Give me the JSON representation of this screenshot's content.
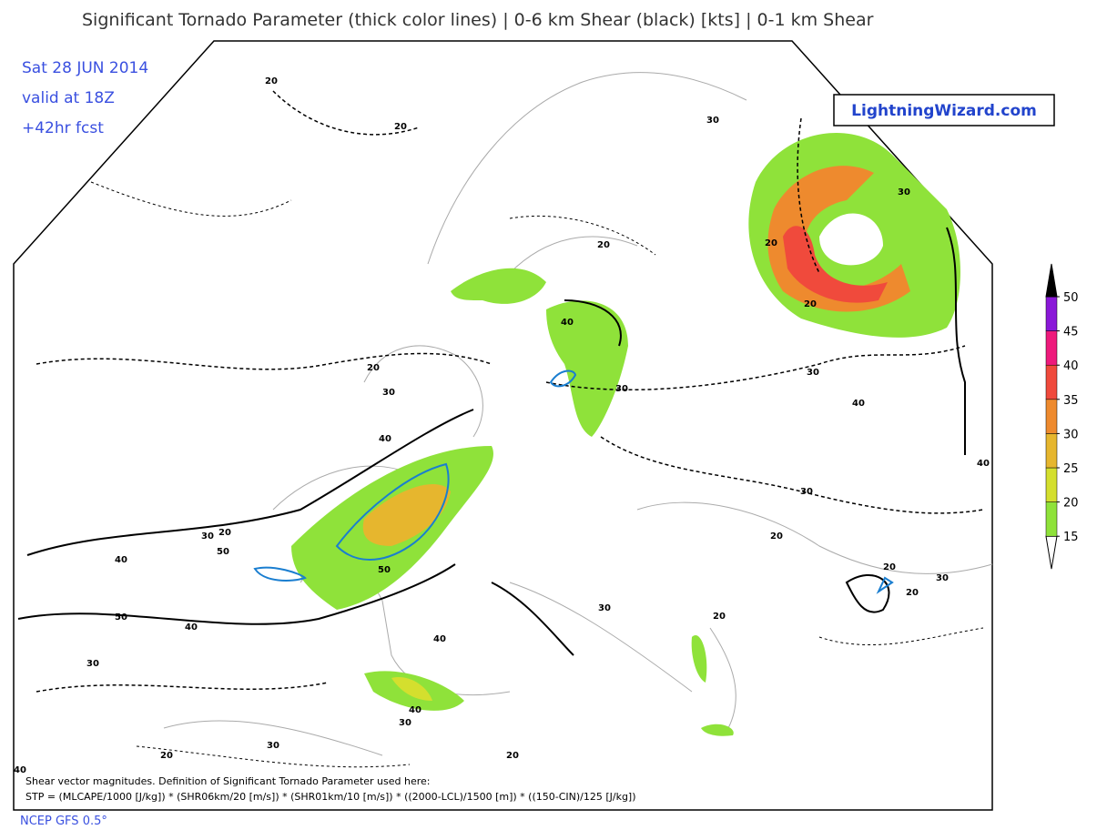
{
  "header": {
    "title": "Significant Tornado Parameter (thick color lines) | 0-6 km Shear (black) [kts] | 0-1 km Shear",
    "date": "Sat 28 JUN 2014",
    "valid": "valid at 18Z",
    "forecast": "+42hr fcst"
  },
  "badge": "LightningWizard.com",
  "legend": {
    "levels": [
      15,
      20,
      25,
      30,
      35,
      40,
      45,
      50
    ],
    "colors": [
      "#8fe23a",
      "#d4df2e",
      "#e6b62e",
      "#ee8a2e",
      "#f04a3c",
      "#ee1a7c",
      "#8a18d8",
      "#000000"
    ]
  },
  "contour_labels": [
    20,
    20,
    30,
    30,
    20,
    20,
    20,
    40,
    30,
    30,
    40,
    20,
    30,
    40,
    40,
    30,
    20,
    20,
    30,
    20,
    20,
    30,
    50,
    40,
    50,
    40,
    30,
    50,
    40,
    30,
    20,
    40,
    30,
    30,
    20,
    20,
    40
  ],
  "footer": {
    "note": "Shear vector magnitudes. Definition of Significant Tornado Parameter used here:",
    "formula": "STP = (MLCAPE/1000 [J/kg]) * (SHR06km/20 [m/s]) * (SHR01km/10 [m/s]) * ((2000-LCL)/1500 [m]) * ((150-CIN)/125 [J/kg])",
    "source": "NCEP GFS 0.5°"
  }
}
